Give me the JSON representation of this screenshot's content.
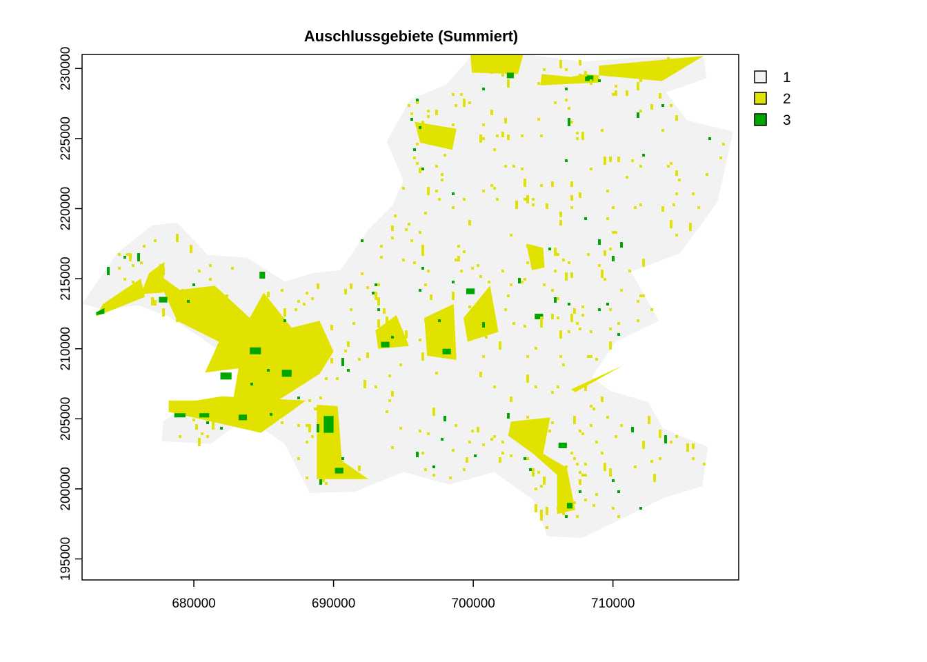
{
  "chart_data": {
    "type": "heatmap",
    "title": "Auschlussgebiete (Summiert)",
    "xlabel": "",
    "ylabel": "",
    "x_range": [
      672000,
      719000
    ],
    "y_range": [
      193500,
      231000
    ],
    "x_ticks": [
      680000,
      690000,
      700000,
      710000
    ],
    "y_ticks": [
      195000,
      200000,
      205000,
      210000,
      215000,
      220000,
      225000,
      230000
    ],
    "grid": false,
    "legend_position": "right",
    "legend": [
      {
        "label": "1",
        "color": "#f2f2f2"
      },
      {
        "label": "2",
        "color": "#e2e200"
      },
      {
        "label": "3",
        "color": "#00a600"
      }
    ],
    "class_colors": {
      "1": "#f2f2f2",
      "2": "#e2e200",
      "3": "#00a600"
    },
    "class_regions": {
      "1": [
        [
          [
            672000,
            213200
          ],
          [
            674500,
            216800
          ],
          [
            677000,
            218800
          ],
          [
            678800,
            219000
          ],
          [
            681000,
            216700
          ],
          [
            683800,
            216500
          ],
          [
            686500,
            214800
          ],
          [
            688500,
            215400
          ],
          [
            690500,
            215600
          ],
          [
            692500,
            218500
          ],
          [
            694200,
            220200
          ],
          [
            695000,
            222000
          ],
          [
            693800,
            224800
          ],
          [
            695500,
            227800
          ],
          [
            698000,
            228800
          ],
          [
            699800,
            230800
          ],
          [
            703800,
            231000
          ],
          [
            707800,
            230500
          ],
          [
            712000,
            230800
          ],
          [
            716500,
            230800
          ],
          [
            716700,
            229300
          ],
          [
            713800,
            228300
          ],
          [
            715300,
            226300
          ],
          [
            718600,
            225500
          ],
          [
            717500,
            220500
          ],
          [
            714800,
            216800
          ],
          [
            711300,
            215500
          ],
          [
            713300,
            212000
          ],
          [
            710200,
            210500
          ],
          [
            708500,
            208000
          ],
          [
            709800,
            207000
          ],
          [
            712500,
            206200
          ],
          [
            713600,
            204300
          ],
          [
            716800,
            203000
          ],
          [
            716400,
            200200
          ],
          [
            713500,
            199300
          ],
          [
            710500,
            197800
          ],
          [
            707800,
            196500
          ],
          [
            705300,
            196600
          ],
          [
            704300,
            199200
          ],
          [
            701500,
            201200
          ],
          [
            698300,
            200300
          ],
          [
            695000,
            201200
          ],
          [
            691500,
            199800
          ],
          [
            688300,
            199700
          ],
          [
            686500,
            203200
          ],
          [
            683800,
            205100
          ],
          [
            681200,
            203200
          ],
          [
            677700,
            203400
          ],
          [
            677800,
            204800
          ],
          [
            680000,
            206300
          ],
          [
            682800,
            206200
          ],
          [
            683500,
            208600
          ],
          [
            680500,
            210800
          ],
          [
            678200,
            212300
          ],
          [
            676000,
            213100
          ],
          [
            673500,
            212800
          ],
          [
            672000,
            213200
          ]
        ]
      ],
      "2": [
        [
          [
            678200,
            205500
          ],
          [
            686000,
            206300
          ],
          [
            689000,
            208200
          ],
          [
            690000,
            209800
          ],
          [
            689000,
            212000
          ],
          [
            687000,
            211500
          ],
          [
            685000,
            214000
          ],
          [
            684000,
            212200
          ],
          [
            681500,
            214500
          ],
          [
            679000,
            214200
          ],
          [
            677200,
            215500
          ],
          [
            678800,
            212000
          ],
          [
            681800,
            210500
          ],
          [
            680800,
            208300
          ],
          [
            683200,
            208600
          ],
          [
            682800,
            206300
          ],
          [
            678200,
            206300
          ]
        ],
        [
          [
            678200,
            205500
          ],
          [
            684800,
            204000
          ],
          [
            687200,
            205700
          ],
          [
            688000,
            206300
          ],
          [
            682000,
            206600
          ],
          [
            678300,
            206000
          ]
        ],
        [
          [
            688800,
            206000
          ],
          [
            690300,
            205900
          ],
          [
            690600,
            202000
          ],
          [
            692500,
            200700
          ],
          [
            688800,
            200700
          ]
        ],
        [
          [
            676800,
            215400
          ],
          [
            677900,
            216200
          ],
          [
            677800,
            214000
          ],
          [
            676200,
            213900
          ]
        ],
        [
          [
            673000,
            212300
          ],
          [
            676500,
            213700
          ],
          [
            676200,
            215000
          ],
          [
            673500,
            213200
          ]
        ],
        [
          [
            699800,
            231000
          ],
          [
            703600,
            231100
          ],
          [
            703200,
            229600
          ],
          [
            699900,
            229700
          ]
        ],
        [
          [
            709000,
            230200
          ],
          [
            716500,
            230900
          ],
          [
            713500,
            229100
          ],
          [
            708000,
            229600
          ],
          [
            707000,
            229400
          ],
          [
            704900,
            229600
          ],
          [
            704800,
            228800
          ],
          [
            709000,
            229000
          ]
        ],
        [
          [
            695800,
            226200
          ],
          [
            698800,
            225700
          ],
          [
            698500,
            224200
          ],
          [
            696200,
            224700
          ]
        ],
        [
          [
            702700,
            204800
          ],
          [
            705500,
            205100
          ],
          [
            705000,
            202500
          ],
          [
            706700,
            201500
          ],
          [
            707300,
            198500
          ],
          [
            706000,
            198200
          ],
          [
            706000,
            201000
          ],
          [
            704300,
            202500
          ],
          [
            702500,
            203800
          ]
        ],
        [
          [
            693000,
            211300
          ],
          [
            694500,
            212400
          ],
          [
            695400,
            210200
          ],
          [
            693200,
            210000
          ]
        ],
        [
          [
            696500,
            212200
          ],
          [
            698600,
            213200
          ],
          [
            698800,
            209200
          ],
          [
            696700,
            209500
          ]
        ],
        [
          [
            699300,
            212200
          ],
          [
            701200,
            214500
          ],
          [
            701800,
            211200
          ],
          [
            699600,
            210500
          ]
        ],
        [
          [
            703800,
            217500
          ],
          [
            705000,
            217200
          ],
          [
            705100,
            215800
          ],
          [
            704200,
            215600
          ]
        ],
        [
          [
            707000,
            207100
          ],
          [
            710700,
            208800
          ],
          [
            707300,
            206900
          ]
        ]
      ],
      "3": [
        [
          [
            673000,
            212600
          ],
          [
            673600,
            212900
          ],
          [
            673600,
            212500
          ],
          [
            673000,
            212400
          ]
        ],
        [
          [
            678600,
            205400
          ],
          [
            679400,
            205400
          ],
          [
            679400,
            205100
          ],
          [
            678600,
            205100
          ]
        ],
        [
          [
            680400,
            205400
          ],
          [
            681100,
            205400
          ],
          [
            681100,
            205100
          ],
          [
            680400,
            205100
          ]
        ],
        [
          [
            683200,
            205300
          ],
          [
            683800,
            205300
          ],
          [
            683800,
            204900
          ],
          [
            683200,
            204900
          ]
        ],
        [
          [
            689300,
            205200
          ],
          [
            690000,
            205200
          ],
          [
            690000,
            204000
          ],
          [
            689300,
            204000
          ]
        ],
        [
          [
            690100,
            201500
          ],
          [
            690700,
            201500
          ],
          [
            690700,
            201100
          ],
          [
            690100,
            201100
          ]
        ],
        [
          [
            681900,
            208300
          ],
          [
            682700,
            208300
          ],
          [
            682700,
            207800
          ],
          [
            681900,
            207800
          ]
        ],
        [
          [
            684000,
            210100
          ],
          [
            684800,
            210100
          ],
          [
            684800,
            209600
          ],
          [
            684000,
            209600
          ]
        ],
        [
          [
            686300,
            208500
          ],
          [
            687000,
            208500
          ],
          [
            687000,
            208000
          ],
          [
            686300,
            208000
          ]
        ],
        [
          [
            684700,
            215500
          ],
          [
            685100,
            215500
          ],
          [
            685100,
            215000
          ],
          [
            684700,
            215000
          ]
        ],
        [
          [
            677500,
            213700
          ],
          [
            678100,
            213700
          ],
          [
            678100,
            213300
          ],
          [
            677500,
            213300
          ]
        ],
        [
          [
            708000,
            229500
          ],
          [
            708600,
            229500
          ],
          [
            708600,
            229100
          ],
          [
            708000,
            229100
          ]
        ],
        [
          [
            702400,
            229700
          ],
          [
            702900,
            229700
          ],
          [
            702900,
            229300
          ],
          [
            702400,
            229300
          ]
        ],
        [
          [
            704400,
            212500
          ],
          [
            705000,
            212500
          ],
          [
            705000,
            212100
          ],
          [
            704400,
            212100
          ]
        ],
        [
          [
            697800,
            210000
          ],
          [
            698400,
            210000
          ],
          [
            698400,
            209600
          ],
          [
            697800,
            209600
          ]
        ],
        [
          [
            706100,
            203300
          ],
          [
            706700,
            203300
          ],
          [
            706700,
            202900
          ],
          [
            706100,
            202900
          ]
        ],
        [
          [
            706700,
            199000
          ],
          [
            707100,
            199000
          ],
          [
            707100,
            198600
          ],
          [
            706700,
            198600
          ]
        ],
        [
          [
            693400,
            210500
          ],
          [
            694000,
            210500
          ],
          [
            694000,
            210100
          ],
          [
            693400,
            210100
          ]
        ],
        [
          [
            699500,
            214300
          ],
          [
            700100,
            214300
          ],
          [
            700100,
            213900
          ],
          [
            699500,
            213900
          ]
        ]
      ]
    },
    "speckle_classes": [
      "1",
      "2",
      "3"
    ],
    "speckle_density": {
      "2": 0.018,
      "3": 0.003
    }
  }
}
